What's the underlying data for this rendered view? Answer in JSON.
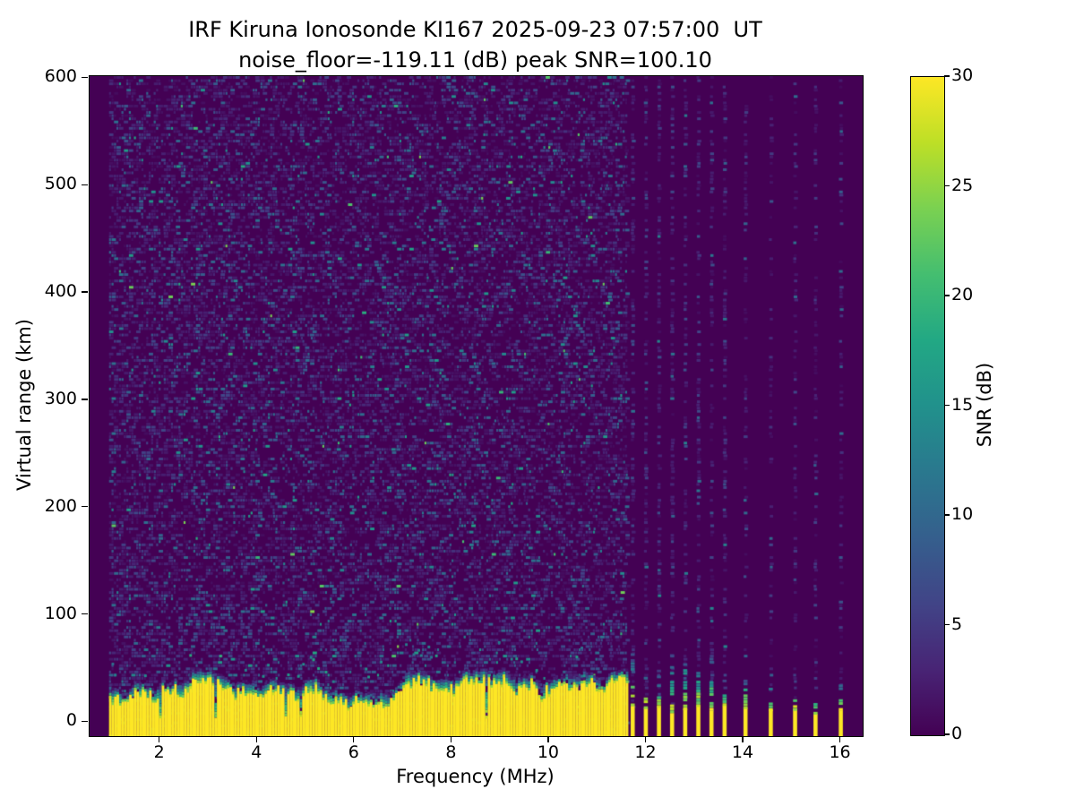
{
  "chart_data": {
    "type": "heatmap",
    "title": "IRF Kiruna Ionosonde KI167 2025-09-23 07:57:00  UT",
    "subtitle": "noise_floor=-119.11 (dB) peak SNR=100.10",
    "xlabel": "Frequency (MHz)",
    "ylabel": "Virtual range (km)",
    "colorbar_label": "SNR (dB)",
    "colormap": "viridis",
    "colormap_stops": [
      [
        0.0,
        "#440154"
      ],
      [
        0.1,
        "#482475"
      ],
      [
        0.2,
        "#414487"
      ],
      [
        0.3,
        "#355f8d"
      ],
      [
        0.4,
        "#2a788e"
      ],
      [
        0.5,
        "#21918c"
      ],
      [
        0.6,
        "#22a884"
      ],
      [
        0.7,
        "#44be70"
      ],
      [
        0.8,
        "#7ad151"
      ],
      [
        0.9,
        "#bddf26"
      ],
      [
        1.0,
        "#fde725"
      ]
    ],
    "xlim": [
      0.55,
      16.45
    ],
    "ylim": [
      -13,
      602
    ],
    "xticks": [
      2,
      4,
      6,
      8,
      10,
      12,
      14,
      16
    ],
    "yticks": [
      0,
      100,
      200,
      300,
      400,
      500,
      600
    ],
    "color_scale": {
      "min": 0,
      "max": 30,
      "ticks": [
        0,
        5,
        10,
        15,
        20,
        25,
        30
      ]
    },
    "grid": false,
    "legend": "colorbar-right",
    "sweep": {
      "continuous_mhz": [
        0.95,
        11.6
      ],
      "discrete_mhz_strong": [
        11.72,
        11.99,
        12.26,
        12.53,
        12.8,
        13.07,
        13.34,
        13.61
      ],
      "discrete_mhz_weak": [
        14.04,
        14.56,
        15.06,
        15.48,
        16.0
      ]
    },
    "features": {
      "background_snr_db": 0,
      "speckle_noise_typical_db": "0-8, sparse dashes up to ~15",
      "ground_clutter": {
        "snr_db": 30,
        "yellow_top_km_typical": [
          15,
          35
        ],
        "fringe_top_km_typical": [
          35,
          55
        ],
        "notch_depth_km": 6
      },
      "discrete_echo": {
        "yellow_top_km": [
          8,
          20
        ],
        "fringe_top_km": [
          40,
          70
        ]
      },
      "noise_seed": 1337
    }
  }
}
